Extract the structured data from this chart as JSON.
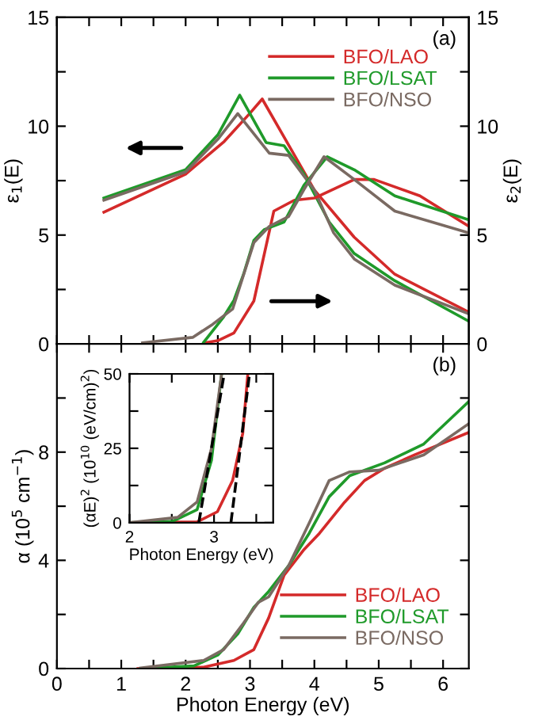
{
  "chart_data": [
    {
      "type": "line",
      "ylabel": "ε$_{1}$(E)",
      "y2label": "ε$_{2}$(E)",
      "annotations": [
        "(a)"
      ],
      "xlim": [
        0,
        6.4
      ],
      "xticks": [
        {
          "value": 0,
          "label": null
        },
        {
          "value": 0.5,
          "label": null
        },
        {
          "value": 1,
          "label": null
        },
        {
          "value": 1.5,
          "label": null
        },
        {
          "value": 2,
          "label": null
        },
        {
          "value": 2.5,
          "label": null
        },
        {
          "value": 3,
          "label": null
        },
        {
          "value": 3.5,
          "label": null
        },
        {
          "value": 4,
          "label": null
        },
        {
          "value": 4.5,
          "label": null
        },
        {
          "value": 5,
          "label": null
        },
        {
          "value": 5.5,
          "label": null
        },
        {
          "value": 6,
          "label": null
        }
      ],
      "ylim": [
        0,
        15
      ],
      "yticks": [
        0,
        {
          "value": 2.5,
          "label": null
        },
        5,
        {
          "value": 7.5,
          "label": null
        },
        10,
        {
          "value": 12.5,
          "label": null
        },
        15
      ],
      "y2lim": [
        0,
        15
      ],
      "y2ticks": [
        0,
        {
          "value": 2.5,
          "label": null
        },
        5,
        {
          "value": 7.5,
          "label": null
        },
        10,
        {
          "value": 12.5,
          "label": null
        },
        15
      ],
      "tick_labels": "y",
      "legend": "top right",
      "grid": false,
      "line_style": "solid",
      "marker": "none",
      "series": [
        {
          "name": "BFO/LAO",
          "color": "#d42a2a",
          "x": [
            0.73,
            2.0,
            2.6,
            3.0,
            3.19,
            3.53,
            4.0,
            4.62,
            5.25,
            6.4
          ],
          "values": [
            6.05,
            7.8,
            9.3,
            10.6,
            11.25,
            9.5,
            7.07,
            4.9,
            3.2,
            1.46
          ]
        },
        {
          "name": "BFO/LSAT",
          "color": "#1f9a2a",
          "x": [
            0.73,
            2.0,
            2.5,
            2.84,
            3.25,
            3.53,
            3.84,
            4.23,
            4.62,
            5.25,
            6.4
          ],
          "values": [
            6.7,
            8.0,
            9.6,
            11.43,
            9.25,
            9.1,
            7.8,
            5.6,
            4.15,
            2.9,
            1.04
          ]
        },
        {
          "name": "BFO/NSO",
          "color": "#7a6a62",
          "x": [
            0.73,
            2.0,
            2.5,
            2.81,
            3.3,
            3.6,
            4.0,
            4.3,
            4.62,
            5.25,
            6.4
          ],
          "values": [
            6.6,
            7.9,
            9.4,
            10.58,
            8.76,
            8.66,
            7.07,
            5.1,
            3.9,
            2.7,
            1.38
          ]
        },
        {
          "axis": "y2",
          "color": "#d42a2a",
          "x": [
            2.3,
            2.5,
            2.75,
            3.06,
            3.37,
            3.69,
            4.0,
            4.62,
            4.93,
            5.64,
            6.4
          ],
          "values": [
            0.05,
            0.15,
            0.5,
            1.97,
            6.1,
            6.6,
            6.7,
            7.55,
            7.55,
            6.8,
            5.4
          ]
        },
        {
          "axis": "y2",
          "color": "#1f9a2a",
          "x": [
            2.28,
            2.59,
            2.75,
            2.9,
            3.06,
            3.22,
            3.53,
            3.84,
            4.2,
            4.62,
            5.25,
            6.4
          ],
          "values": [
            0.07,
            1.24,
            2.0,
            3.2,
            4.75,
            5.25,
            5.6,
            7.3,
            8.6,
            8.0,
            6.8,
            5.7
          ]
        },
        {
          "axis": "y2",
          "color": "#7a6a62",
          "x": [
            1.33,
            2.11,
            2.42,
            2.73,
            3.06,
            3.3,
            3.6,
            3.84,
            4.15,
            4.62,
            5.25,
            6.4
          ],
          "values": [
            0.05,
            0.3,
            0.9,
            1.6,
            4.65,
            5.4,
            5.85,
            7.1,
            8.6,
            7.55,
            6.1,
            5.1
          ]
        }
      ]
    },
    {
      "type": "line",
      "xlabel": "Photon Energy (eV)",
      "ylabel": "α (10$^{5}$ cm$^{−1}$)",
      "annotations": [
        "(b)"
      ],
      "xlim": [
        0,
        6.4
      ],
      "xticks": [
        0,
        {
          "value": 0.5,
          "label": null
        },
        1,
        {
          "value": 1.5,
          "label": null
        },
        2,
        {
          "value": 2.5,
          "label": null
        },
        3,
        {
          "value": 3.5,
          "label": null
        },
        4,
        {
          "value": 4.5,
          "label": null
        },
        5,
        {
          "value": 5.5,
          "label": null
        },
        6
      ],
      "ylim": [
        0,
        12
      ],
      "yticks": [
        0,
        {
          "value": 2,
          "label": null
        },
        4,
        {
          "value": 6,
          "label": null
        },
        8,
        {
          "value": 10,
          "label": null
        }
      ],
      "legend": "bottom right",
      "grid": false,
      "line_style": "solid",
      "marker": "none",
      "series": [
        {
          "name": "BFO/LAO",
          "color": "#d42a2a",
          "x": [
            1.26,
            2.28,
            2.75,
            3.06,
            3.29,
            3.53,
            3.84,
            4.08,
            4.47,
            4.78,
            5.09,
            5.56,
            6.4
          ],
          "values": [
            0,
            0.05,
            0.3,
            0.7,
            1.87,
            3.45,
            4.4,
            5.0,
            6.15,
            6.95,
            7.4,
            7.9,
            8.73
          ]
        },
        {
          "name": "BFO/LSAT",
          "color": "#1f9a2a",
          "x": [
            1.3,
            2.13,
            2.5,
            2.81,
            3.06,
            3.29,
            3.6,
            3.92,
            4.23,
            4.55,
            5.09,
            5.7,
            6.4
          ],
          "values": [
            0,
            0.1,
            0.5,
            1.28,
            2.26,
            2.85,
            3.8,
            5.0,
            6.35,
            7.13,
            7.6,
            8.3,
            9.87
          ]
        },
        {
          "name": "BFO/NSO",
          "color": "#7a6a62",
          "x": [
            1.3,
            2.28,
            2.59,
            2.9,
            3.13,
            3.29,
            3.6,
            3.92,
            4.23,
            4.55,
            5.0,
            5.7,
            6.4
          ],
          "values": [
            0.02,
            0.3,
            0.7,
            1.68,
            2.45,
            2.65,
            3.8,
            5.38,
            6.95,
            7.27,
            7.33,
            7.9,
            9.05
          ]
        }
      ]
    },
    {
      "type": "line",
      "xlabel": "Photon Energy (eV)",
      "ylabel": "(αE)$^{2}$ (10$^{10}$ (eV/cm)$^{2}$)",
      "xlim": [
        2,
        3.7
      ],
      "xticks": [
        2,
        {
          "value": 2.5,
          "label": null
        },
        3,
        {
          "value": 3.5,
          "label": null
        }
      ],
      "ylim": [
        0,
        50
      ],
      "yticks": [
        0,
        {
          "value": 12.5,
          "label": null
        },
        25,
        {
          "value": 37.5,
          "label": null
        },
        50
      ],
      "grid": false,
      "line_style": "solid",
      "marker": "none",
      "series": [
        {
          "color": "#d42a2a",
          "x": [
            2.0,
            2.8,
            3.04,
            3.22,
            3.34,
            3.4
          ],
          "values": [
            0,
            0.3,
            3.7,
            14.2,
            30,
            50
          ]
        },
        {
          "color": "#1f9a2a",
          "x": [
            2.0,
            2.51,
            2.8,
            2.97,
            3.09
          ],
          "values": [
            0,
            0.5,
            4.4,
            21,
            50
          ]
        },
        {
          "color": "#7a6a62",
          "x": [
            2.0,
            2.57,
            2.8,
            2.97,
            3.09
          ],
          "values": [
            0,
            1.8,
            7,
            25,
            50
          ]
        },
        {
          "color": "#000000",
          "line_style": "dashed",
          "x": [
            2.82,
            3.12
          ],
          "values": [
            0,
            50
          ]
        },
        {
          "color": "#000000",
          "line_style": "dashed",
          "x": [
            3.2,
            3.42
          ],
          "values": [
            0,
            50
          ]
        }
      ]
    }
  ]
}
